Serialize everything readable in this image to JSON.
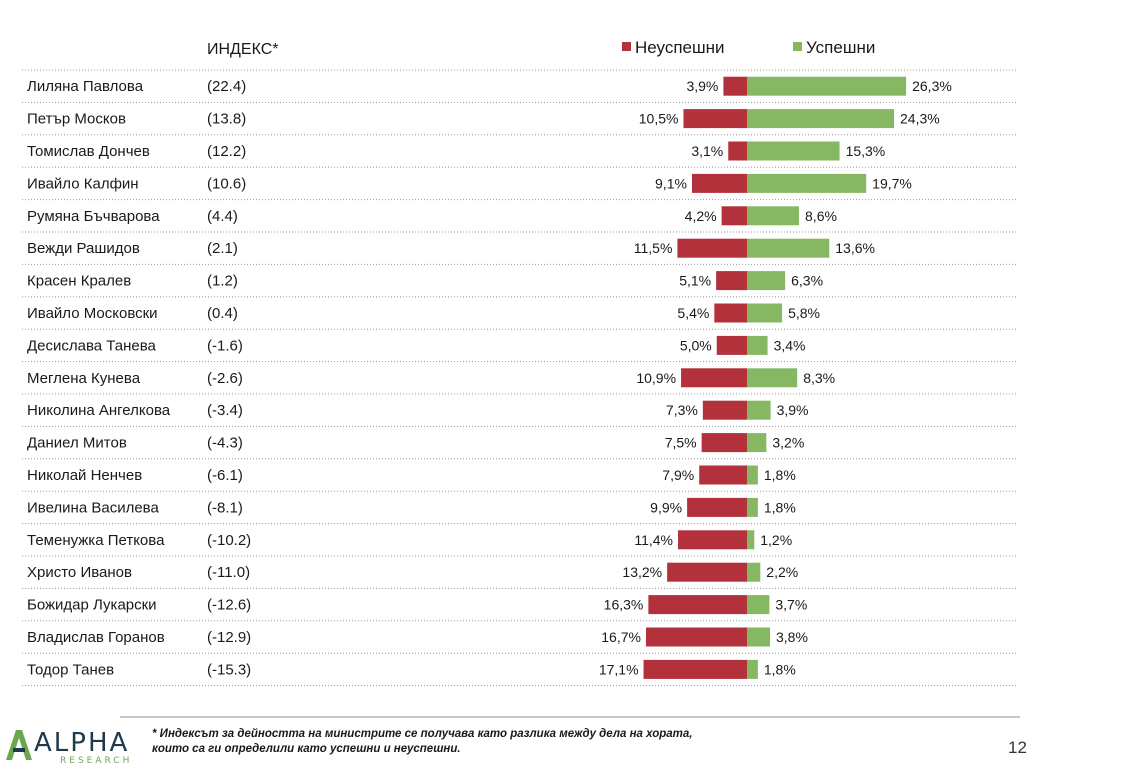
{
  "colors": {
    "negative": "#b3313a",
    "positive": "#86b863",
    "text": "#1a1a1a"
  },
  "chart_data": {
    "type": "bar",
    "orientation": "horizontal",
    "stacking": "diverging",
    "index_header": "ИНДЕКС*",
    "legend": {
      "negative": "Неуспешни",
      "positive": "Успешни",
      "position": "top-right"
    },
    "unit": "%",
    "rows": [
      {
        "name": "Лиляна Павлова",
        "index": "(22.4)",
        "neg": 3.9,
        "neg_label": "3,9%",
        "pos": 26.3,
        "pos_label": "26,3%"
      },
      {
        "name": "Петър Москов",
        "index": "(13.8)",
        "neg": 10.5,
        "neg_label": "10,5%",
        "pos": 24.3,
        "pos_label": "24,3%"
      },
      {
        "name": "Томислав Дончев",
        "index": "(12.2)",
        "neg": 3.1,
        "neg_label": "3,1%",
        "pos": 15.3,
        "pos_label": "15,3%"
      },
      {
        "name": "Ивайло Калфин",
        "index": "(10.6)",
        "neg": 9.1,
        "neg_label": "9,1%",
        "pos": 19.7,
        "pos_label": "19,7%"
      },
      {
        "name": "Румяна Бъчварова",
        "index": "(4.4)",
        "neg": 4.2,
        "neg_label": "4,2%",
        "pos": 8.6,
        "pos_label": "8,6%"
      },
      {
        "name": "Вежди Рашидов",
        "index": "(2.1)",
        "neg": 11.5,
        "neg_label": "11,5%",
        "pos": 13.6,
        "pos_label": "13,6%"
      },
      {
        "name": "Красен Кралев",
        "index": "(1.2)",
        "neg": 5.1,
        "neg_label": "5,1%",
        "pos": 6.3,
        "pos_label": "6,3%"
      },
      {
        "name": "Ивайло Московски",
        "index": "(0.4)",
        "neg": 5.4,
        "neg_label": "5,4%",
        "pos": 5.8,
        "pos_label": "5,8%"
      },
      {
        "name": "Десислава Танева",
        "index": "(-1.6)",
        "neg": 5.0,
        "neg_label": "5,0%",
        "pos": 3.4,
        "pos_label": "3,4%"
      },
      {
        "name": "Меглена Кунева",
        "index": "(-2.6)",
        "neg": 10.9,
        "neg_label": "10,9%",
        "pos": 8.3,
        "pos_label": "8,3%"
      },
      {
        "name": "Николина Ангелкова",
        "index": "(-3.4)",
        "neg": 7.3,
        "neg_label": "7,3%",
        "pos": 3.9,
        "pos_label": "3,9%"
      },
      {
        "name": "Даниел Митов",
        "index": "(-4.3)",
        "neg": 7.5,
        "neg_label": "7,5%",
        "pos": 3.2,
        "pos_label": "3,2%"
      },
      {
        "name": "Николай Ненчев",
        "index": "(-6.1)",
        "neg": 7.9,
        "neg_label": "7,9%",
        "pos": 1.8,
        "pos_label": "1,8%"
      },
      {
        "name": "Ивелина Василева",
        "index": "(-8.1)",
        "neg": 9.9,
        "neg_label": "9,9%",
        "pos": 1.8,
        "pos_label": "1,8%"
      },
      {
        "name": "Теменужка Петкова",
        "index": "(-10.2)",
        "neg": 11.4,
        "neg_label": "11,4%",
        "pos": 1.2,
        "pos_label": "1,2%"
      },
      {
        "name": "Христо Иванов",
        "index": "(-11.0)",
        "neg": 13.2,
        "neg_label": "13,2%",
        "pos": 2.2,
        "pos_label": "2,2%"
      },
      {
        "name": "Божидар Лукарски",
        "index": "(-12.6)",
        "neg": 16.3,
        "neg_label": "16,3%",
        "pos": 3.7,
        "pos_label": "3,7%"
      },
      {
        "name": "Владислав Горанов",
        "index": "(-12.9)",
        "neg": 16.7,
        "neg_label": "16,7%",
        "pos": 3.8,
        "pos_label": "3,8%"
      },
      {
        "name": "Тодор Танев",
        "index": "(-15.3)",
        "neg": 17.1,
        "neg_label": "17,1%",
        "pos": 1.8,
        "pos_label": "1,8%"
      }
    ]
  },
  "footnote": {
    "line1": "* Индексът за дейността на министрите се получава като разлика между дела на хората,",
    "line2": "които са ги определили като успешни и неуспешни."
  },
  "logo": {
    "word": "ALPHA",
    "sub": "RESEARCH"
  },
  "page_number": "12"
}
